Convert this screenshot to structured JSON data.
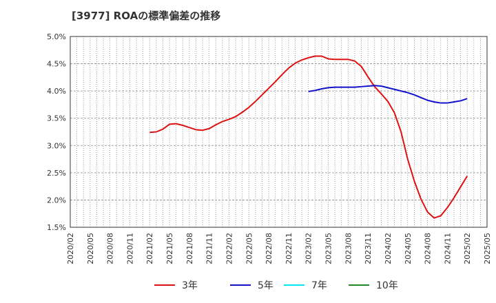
{
  "chart_data": {
    "type": "line",
    "title": "[3977]  ROAの標準偏差の推移",
    "xlabel": "",
    "ylabel": "",
    "x_ticks": [
      "2020/02",
      "2020/05",
      "2020/08",
      "2020/11",
      "2021/02",
      "2021/05",
      "2021/08",
      "2021/11",
      "2022/02",
      "2022/05",
      "2022/08",
      "2022/11",
      "2023/02",
      "2023/05",
      "2023/08",
      "2023/11",
      "2024/02",
      "2024/05",
      "2024/08",
      "2024/11",
      "2025/02",
      "2025/05"
    ],
    "y_ticks": [
      "1.5%",
      "2.0%",
      "2.5%",
      "3.0%",
      "3.5%",
      "4.0%",
      "4.5%",
      "5.0%"
    ],
    "ylim": [
      1.5,
      5.0
    ],
    "x_start": "2020/02",
    "x_end": "2025/05",
    "grid": true,
    "legend_position": "bottom",
    "series": [
      {
        "name": "3年",
        "color": "#dd1111",
        "points": [
          [
            "2021/02",
            3.24
          ],
          [
            "2021/03",
            3.25
          ],
          [
            "2021/04",
            3.3
          ],
          [
            "2021/05",
            3.39
          ],
          [
            "2021/06",
            3.4
          ],
          [
            "2021/07",
            3.37
          ],
          [
            "2021/08",
            3.33
          ],
          [
            "2021/09",
            3.29
          ],
          [
            "2021/10",
            3.28
          ],
          [
            "2021/11",
            3.31
          ],
          [
            "2021/12",
            3.38
          ],
          [
            "2022/01",
            3.44
          ],
          [
            "2022/02",
            3.48
          ],
          [
            "2022/03",
            3.53
          ],
          [
            "2022/04",
            3.61
          ],
          [
            "2022/05",
            3.7
          ],
          [
            "2022/06",
            3.81
          ],
          [
            "2022/07",
            3.93
          ],
          [
            "2022/08",
            4.05
          ],
          [
            "2022/09",
            4.17
          ],
          [
            "2022/10",
            4.3
          ],
          [
            "2022/11",
            4.42
          ],
          [
            "2022/12",
            4.51
          ],
          [
            "2023/01",
            4.57
          ],
          [
            "2023/02",
            4.61
          ],
          [
            "2023/03",
            4.64
          ],
          [
            "2023/04",
            4.64
          ],
          [
            "2023/05",
            4.59
          ],
          [
            "2023/06",
            4.58
          ],
          [
            "2023/07",
            4.58
          ],
          [
            "2023/08",
            4.58
          ],
          [
            "2023/09",
            4.55
          ],
          [
            "2023/10",
            4.45
          ],
          [
            "2023/11",
            4.26
          ],
          [
            "2023/12",
            4.08
          ],
          [
            "2024/01",
            3.95
          ],
          [
            "2024/02",
            3.81
          ],
          [
            "2024/03",
            3.6
          ],
          [
            "2024/04",
            3.25
          ],
          [
            "2024/05",
            2.75
          ],
          [
            "2024/06",
            2.35
          ],
          [
            "2024/07",
            2.02
          ],
          [
            "2024/08",
            1.78
          ],
          [
            "2024/09",
            1.67
          ],
          [
            "2024/10",
            1.71
          ],
          [
            "2024/11",
            1.86
          ],
          [
            "2024/12",
            2.04
          ],
          [
            "2025/01",
            2.24
          ],
          [
            "2025/02",
            2.44
          ]
        ]
      },
      {
        "name": "5年",
        "color": "#1111cc",
        "points": [
          [
            "2023/02",
            3.99
          ],
          [
            "2023/03",
            4.01
          ],
          [
            "2023/04",
            4.04
          ],
          [
            "2023/05",
            4.06
          ],
          [
            "2023/06",
            4.07
          ],
          [
            "2023/07",
            4.07
          ],
          [
            "2023/08",
            4.07
          ],
          [
            "2023/09",
            4.07
          ],
          [
            "2023/10",
            4.08
          ],
          [
            "2023/11",
            4.09
          ],
          [
            "2023/12",
            4.1
          ],
          [
            "2024/01",
            4.09
          ],
          [
            "2024/02",
            4.06
          ],
          [
            "2024/03",
            4.03
          ],
          [
            "2024/04",
            4.0
          ],
          [
            "2024/05",
            3.97
          ],
          [
            "2024/06",
            3.93
          ],
          [
            "2024/07",
            3.88
          ],
          [
            "2024/08",
            3.83
          ],
          [
            "2024/09",
            3.8
          ],
          [
            "2024/10",
            3.78
          ],
          [
            "2024/11",
            3.78
          ],
          [
            "2024/12",
            3.8
          ],
          [
            "2025/01",
            3.82
          ],
          [
            "2025/02",
            3.86
          ]
        ]
      },
      {
        "name": "7年",
        "color": "#00e5ee",
        "points": []
      },
      {
        "name": "10年",
        "color": "#228822",
        "points": []
      }
    ]
  }
}
